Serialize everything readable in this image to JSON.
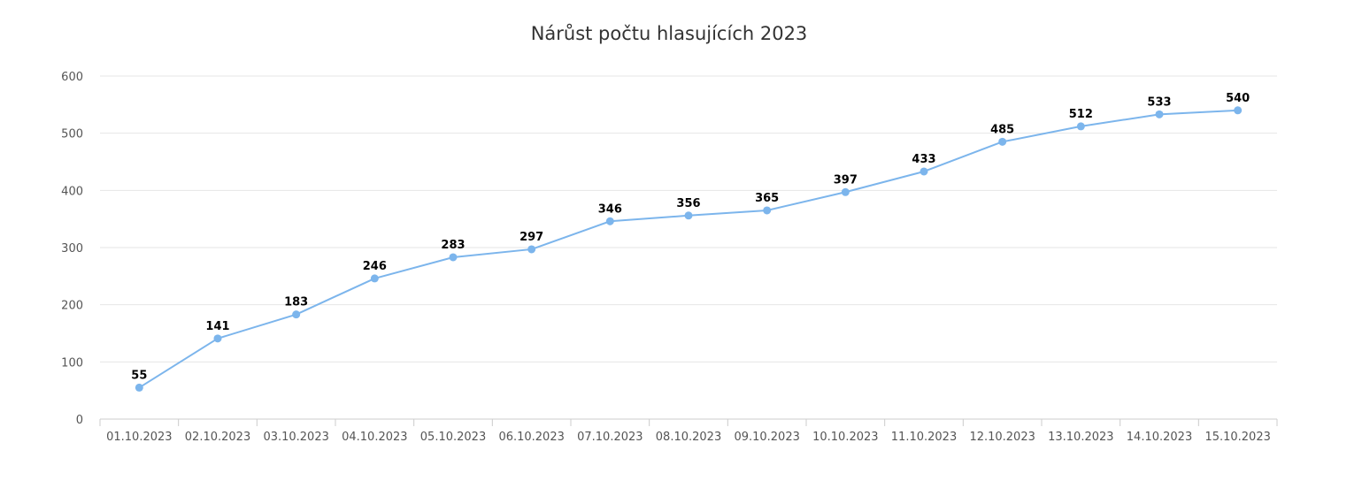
{
  "chart_data": {
    "type": "line",
    "title": "Nárůst počtu hlasujících 2023",
    "xlabel": "",
    "ylabel": "",
    "categories": [
      "01.10.2023",
      "02.10.2023",
      "03.10.2023",
      "04.10.2023",
      "05.10.2023",
      "06.10.2023",
      "07.10.2023",
      "08.10.2023",
      "09.10.2023",
      "10.10.2023",
      "11.10.2023",
      "12.10.2023",
      "13.10.2023",
      "14.10.2023",
      "15.10.2023"
    ],
    "series": [
      {
        "values": [
          55,
          141,
          183,
          246,
          283,
          297,
          346,
          356,
          365,
          397,
          433,
          485,
          512,
          533,
          540
        ]
      }
    ],
    "ylim": [
      0,
      600
    ],
    "yticks": [
      0,
      100,
      200,
      300,
      400,
      500,
      600
    ],
    "grid": true,
    "data_labels": true,
    "legend": "none",
    "colors": {
      "line": "#7cb5ec",
      "grid": "#e6e6e6",
      "axis": "#cccccc"
    }
  }
}
